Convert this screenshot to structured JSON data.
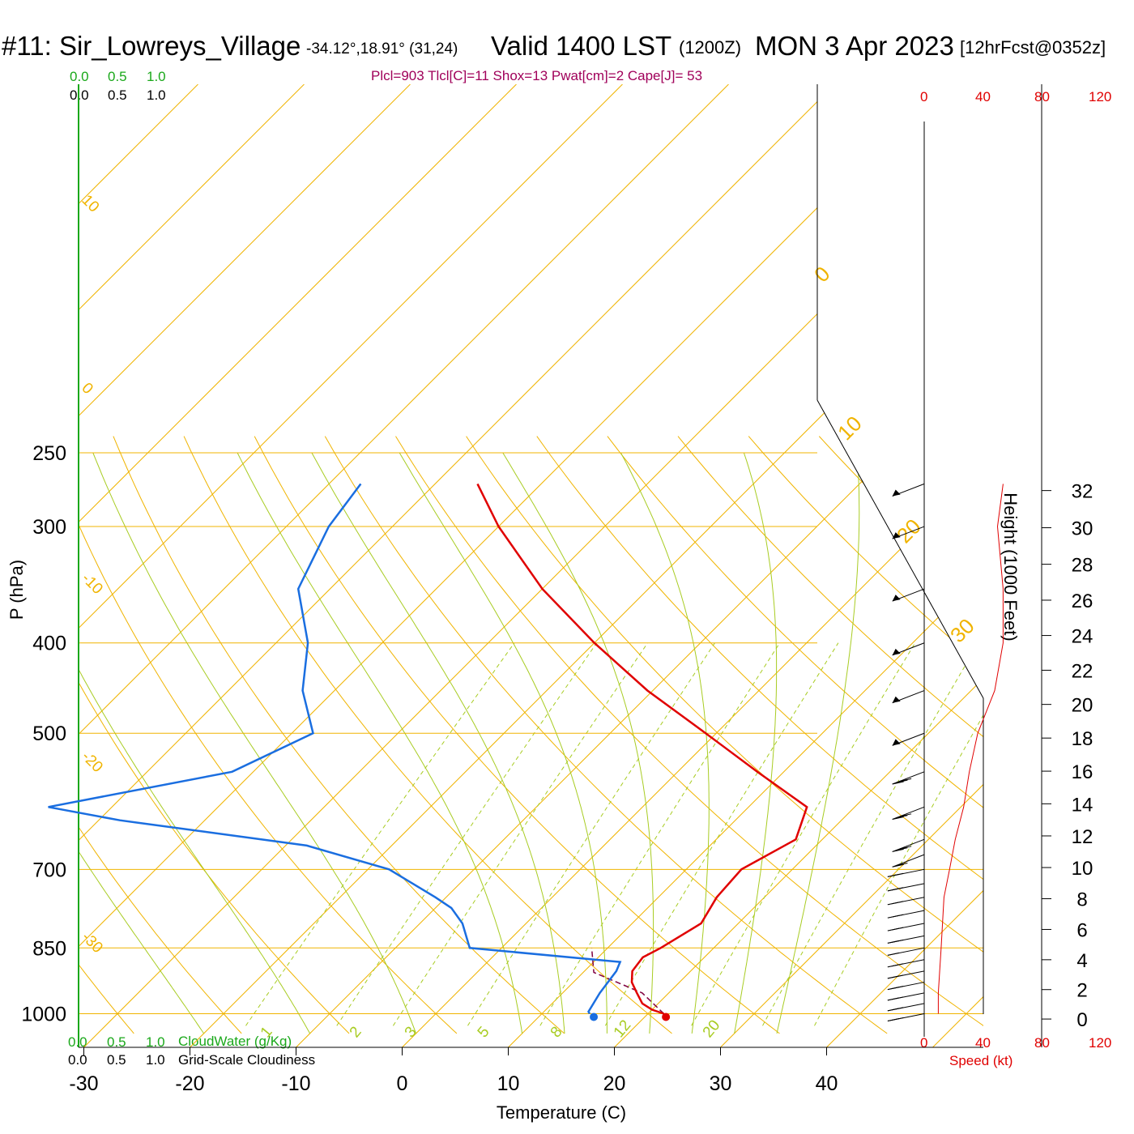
{
  "header": {
    "station": "#11: Sir_Lowreys_Village",
    "coords": "-34.12°,18.91° (31,24)",
    "valid": "Valid 1400 LST",
    "zulu": "(1200Z)",
    "date": "MON 3 Apr 2023",
    "forecast": "[12hrFcst@0352z]"
  },
  "stats_line": "Plcl=903 Tlcl[C]=11 Shox=13 Pwat[cm]=2 Cape[J]= 53",
  "scale_top": {
    "cloudwater_ticks": [
      "0.0",
      "0.5",
      "1.0"
    ],
    "cloudiness_ticks": [
      "0.0",
      "0.5",
      "1.0"
    ]
  },
  "scale_bottom": {
    "cloudwater_ticks": [
      "0.0",
      "0.5",
      "1.0"
    ],
    "cloudwater_label": "CloudWater (g/Kg)",
    "cloudiness_ticks": [
      "0.0",
      "0.5",
      "1.0"
    ],
    "cloudiness_label": "Grid-Scale Cloudiness"
  },
  "wind_speed_axis": {
    "ticks_top": [
      "0",
      "40",
      "80",
      "120"
    ],
    "ticks_bottom": [
      "0",
      "40",
      "80",
      "120"
    ],
    "label": "Speed (kt)"
  },
  "colors": {
    "temperature": "#e00000",
    "dewpoint": "#1a6ee0",
    "isotherm": "#f0b400",
    "dry_adiabat": "#f0b400",
    "moist_adiabat": "#a8cc22",
    "mixing_ratio": "#a8cc22",
    "parcel": "#800040",
    "cloud_green": "#1aa81a",
    "stats": "#a0005a"
  },
  "chart_data": {
    "type": "line",
    "title": "",
    "xlabel": "Temperature (C)",
    "ylabel": "P (hPa)",
    "y2label": "Height (1000 Feet)",
    "x_ticks": [
      -30,
      -20,
      -10,
      0,
      10,
      20,
      30,
      40
    ],
    "xlim": [
      -33,
      36
    ],
    "p_ticks": [
      1000,
      850,
      700,
      500,
      400,
      300,
      250
    ],
    "height_ticks": [
      0,
      2,
      4,
      6,
      8,
      10,
      12,
      14,
      16,
      18,
      20,
      22,
      24,
      26,
      28,
      30,
      32
    ],
    "isotherm_labels": [
      "10",
      "0",
      "-10",
      "-20",
      "-30"
    ],
    "isotherm_labels_right": [
      "0",
      "10",
      "20",
      "30"
    ],
    "mixing_ratio_labels": [
      "1",
      "2",
      "3",
      "5",
      "8",
      "12",
      "20"
    ],
    "series": [
      {
        "name": "Temperature",
        "points": [
          [
            1000,
            21.5
          ],
          [
            990,
            20
          ],
          [
            975,
            18.5
          ],
          [
            950,
            17
          ],
          [
            925,
            15.5
          ],
          [
            900,
            14.5
          ],
          [
            870,
            14.2
          ],
          [
            850,
            15
          ],
          [
            800,
            16.5
          ],
          [
            750,
            15.5
          ],
          [
            700,
            15.2
          ],
          [
            650,
            17.5
          ],
          [
            600,
            15.5
          ],
          [
            550,
            7.5
          ],
          [
            500,
            -1
          ],
          [
            450,
            -10.5
          ],
          [
            400,
            -20
          ],
          [
            350,
            -30
          ],
          [
            300,
            -40
          ],
          [
            270,
            -46
          ]
        ]
      },
      {
        "name": "Dewpoint",
        "points": [
          [
            1000,
            14.5
          ],
          [
            995,
            14.2
          ],
          [
            950,
            13.5
          ],
          [
            900,
            13
          ],
          [
            880,
            12.5
          ],
          [
            850,
            -3
          ],
          [
            800,
            -6
          ],
          [
            770,
            -8.5
          ],
          [
            750,
            -11
          ],
          [
            700,
            -18
          ],
          [
            660,
            -28
          ],
          [
            620,
            -48
          ],
          [
            600,
            -56
          ],
          [
            550,
            -42
          ],
          [
            500,
            -38
          ],
          [
            450,
            -43
          ],
          [
            400,
            -47
          ],
          [
            350,
            -53
          ],
          [
            300,
            -56
          ],
          [
            270,
            -57
          ]
        ]
      },
      {
        "name": "Parcel",
        "points": [
          [
            1000,
            21.5
          ],
          [
            950,
            17.5
          ],
          [
            903,
            11
          ],
          [
            850,
            8.5
          ]
        ]
      }
    ],
    "surface": {
      "temperature": 22.3,
      "dewpoint": 15.5
    },
    "wind_speed_profile": [
      [
        1000,
        10
      ],
      [
        950,
        10
      ],
      [
        900,
        11
      ],
      [
        850,
        12
      ],
      [
        800,
        13
      ],
      [
        750,
        14
      ],
      [
        700,
        18
      ],
      [
        650,
        22
      ],
      [
        600,
        28
      ],
      [
        550,
        32
      ],
      [
        500,
        38
      ],
      [
        450,
        50
      ],
      [
        400,
        56
      ],
      [
        350,
        56
      ],
      [
        300,
        52
      ],
      [
        270,
        56
      ]
    ],
    "wind_barbs": [
      {
        "p": 1000,
        "speed": 20
      },
      {
        "p": 975,
        "speed": 20
      },
      {
        "p": 950,
        "speed": 20
      },
      {
        "p": 925,
        "speed": 20
      },
      {
        "p": 900,
        "speed": 20
      },
      {
        "p": 875,
        "speed": 20
      },
      {
        "p": 850,
        "speed": 15
      },
      {
        "p": 825,
        "speed": 20
      },
      {
        "p": 800,
        "speed": 20
      },
      {
        "p": 775,
        "speed": 20
      },
      {
        "p": 750,
        "speed": 20
      },
      {
        "p": 725,
        "speed": 20
      },
      {
        "p": 700,
        "speed": 20
      },
      {
        "p": 675,
        "speed": 20
      },
      {
        "p": 650,
        "speed": 30
      },
      {
        "p": 600,
        "speed": 30
      },
      {
        "p": 550,
        "speed": 30
      },
      {
        "p": 500,
        "speed": 50
      },
      {
        "p": 450,
        "speed": 50
      },
      {
        "p": 400,
        "speed": 50
      },
      {
        "p": 350,
        "speed": 50
      },
      {
        "p": 300,
        "speed": 50
      },
      {
        "p": 270,
        "speed": 50
      }
    ]
  }
}
